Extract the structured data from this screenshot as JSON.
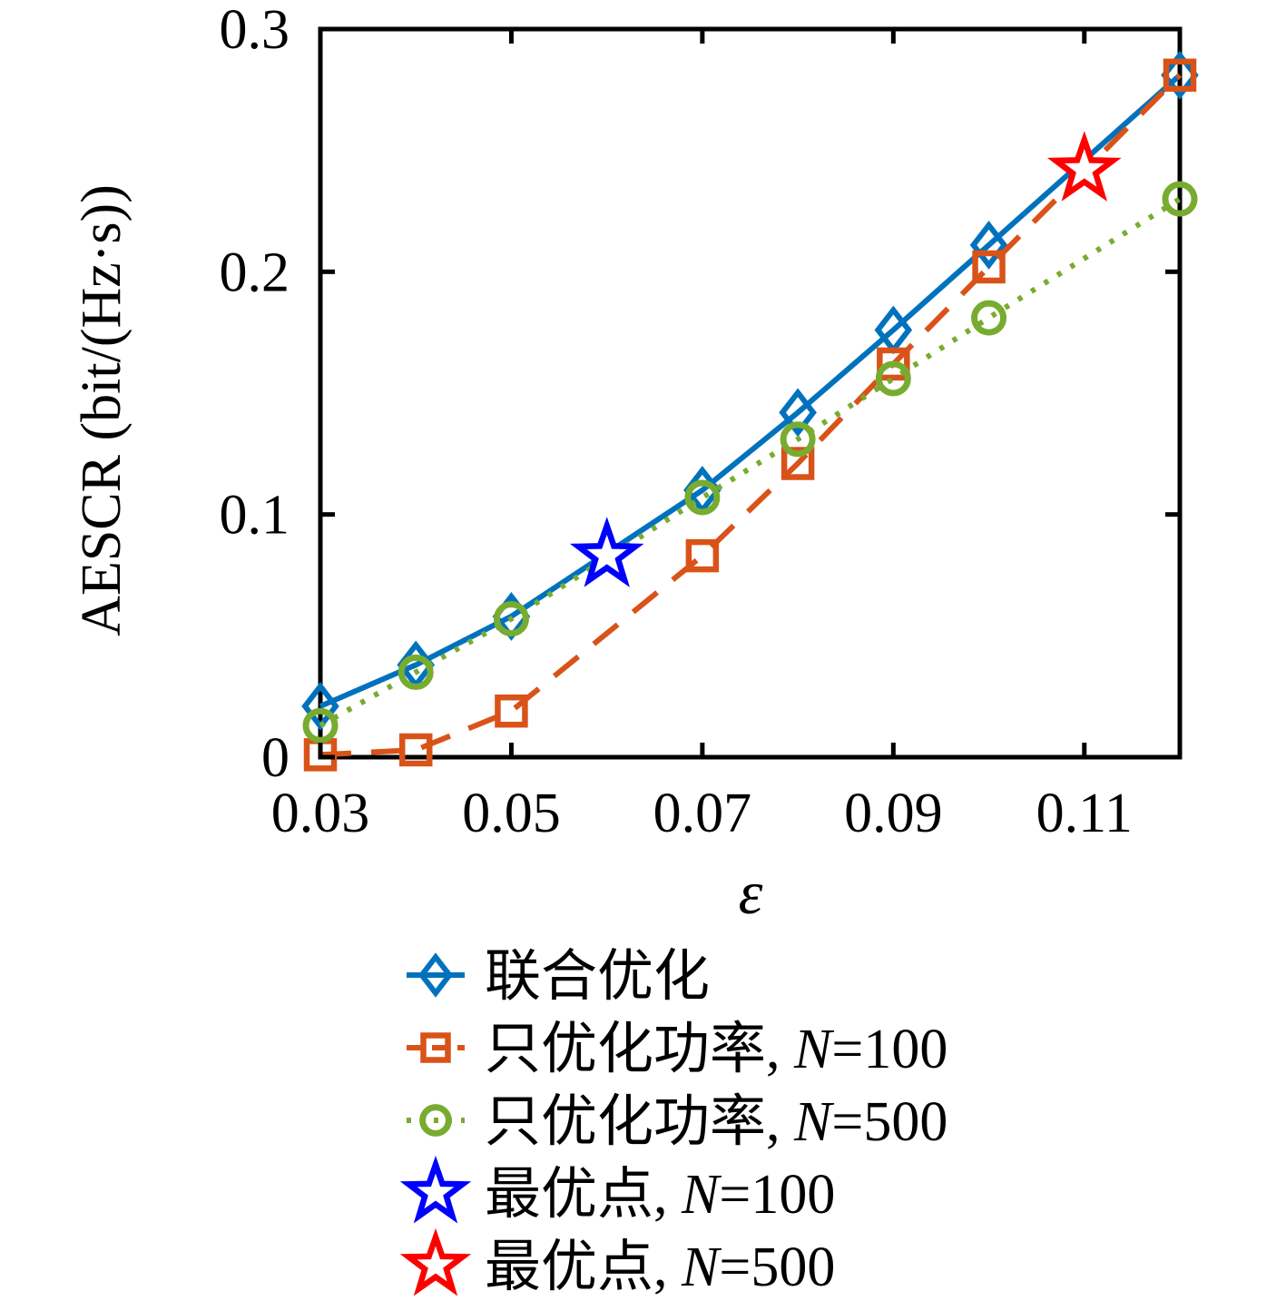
{
  "figure": {
    "background": "#ffffff",
    "frame_color": "#000000"
  },
  "chart_data": {
    "type": "line",
    "title": "",
    "xlabel": "ε",
    "ylabel": "AESCR (bit/(Hz·s))",
    "xlim": [
      0.03,
      0.12
    ],
    "ylim": [
      0,
      0.3
    ],
    "xticks": [
      0.03,
      0.05,
      0.07,
      0.09,
      0.11
    ],
    "xtick_labels": [
      "0.03",
      "0.05",
      "0.07",
      "0.09",
      "0.11"
    ],
    "yticks": [
      0,
      0.1,
      0.2,
      0.3
    ],
    "ytick_labels": [
      "0",
      "0.1",
      "0.2",
      "0.3"
    ],
    "grid": false,
    "legend_position": "below-left",
    "series": [
      {
        "name": "联合优化",
        "color": "#0072BD",
        "line": "solid",
        "marker": "diamond",
        "x": [
          0.03,
          0.04,
          0.05,
          0.07,
          0.08,
          0.09,
          0.1,
          0.12
        ],
        "y": [
          0.021,
          0.038,
          0.058,
          0.11,
          0.142,
          0.176,
          0.211,
          0.281
        ]
      },
      {
        "name": "只优化功率, N=100",
        "color": "#D95319",
        "line": "dashed",
        "marker": "square",
        "x": [
          0.03,
          0.04,
          0.05,
          0.07,
          0.08,
          0.09,
          0.1,
          0.12
        ],
        "y": [
          0.001,
          0.003,
          0.019,
          0.083,
          0.121,
          0.162,
          0.202,
          0.281
        ]
      },
      {
        "name": "只优化功率, N=500",
        "color": "#77AC30",
        "line": "dotted",
        "marker": "circle",
        "x": [
          0.03,
          0.04,
          0.05,
          0.07,
          0.08,
          0.09,
          0.1,
          0.12
        ],
        "y": [
          0.013,
          0.035,
          0.057,
          0.107,
          0.131,
          0.156,
          0.181,
          0.23
        ]
      }
    ],
    "optimal_points": [
      {
        "name": "最优点, N=100",
        "color": "#0000FF",
        "marker": "star",
        "x": 0.06,
        "y": 0.083
      },
      {
        "name": "最优点, N=500",
        "color": "#FF0000",
        "marker": "star",
        "x": 0.11,
        "y": 0.242
      }
    ]
  }
}
